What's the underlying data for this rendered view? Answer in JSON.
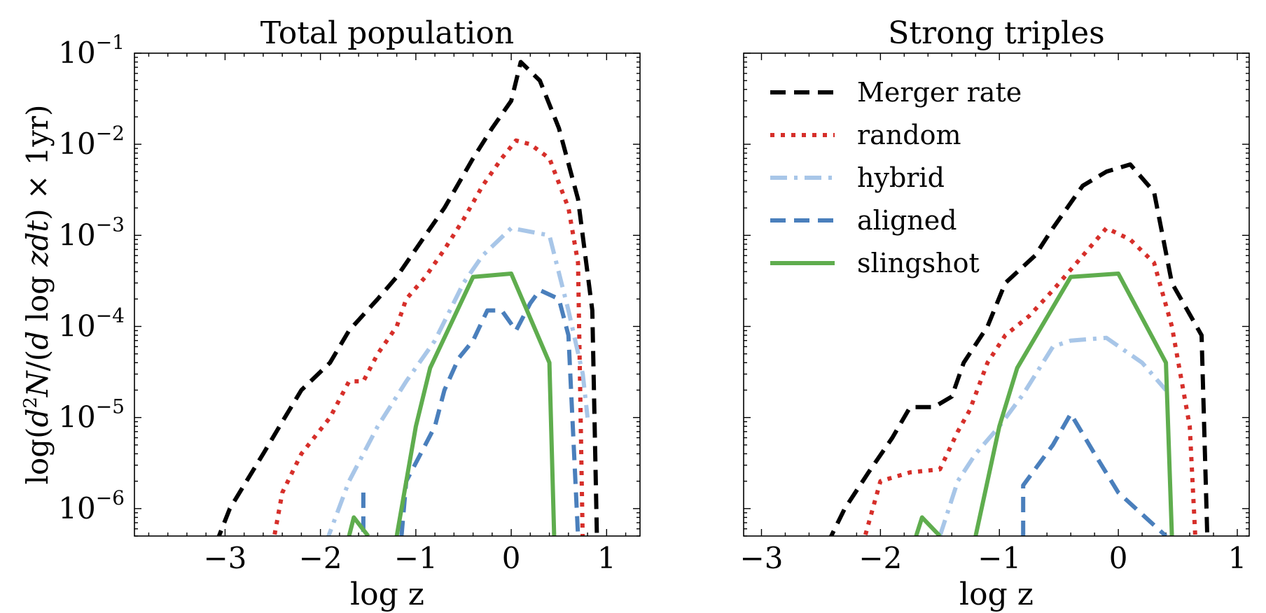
{
  "colors": {
    "merger_rate": "#000000",
    "random": "#d62f2a",
    "hybrid": "#a8c6e8",
    "aligned": "#4a7fbc",
    "slingshot": "#5fad4e"
  },
  "y_axis": {
    "label_parts": [
      "log(",
      "d",
      "2",
      "N",
      "/(",
      "d",
      " log ",
      "z",
      "d",
      "t",
      ") × 1yr)"
    ],
    "scale": "log",
    "ylim": [
      5e-07,
      0.1
    ],
    "ticks": [
      {
        "value": 1e-06,
        "base": "10",
        "exp": "−6"
      },
      {
        "value": 1e-05,
        "base": "10",
        "exp": "−5"
      },
      {
        "value": 0.0001,
        "base": "10",
        "exp": "−4"
      },
      {
        "value": 0.001,
        "base": "10",
        "exp": "−3"
      },
      {
        "value": 0.01,
        "base": "10",
        "exp": "−2"
      },
      {
        "value": 0.1,
        "base": "10",
        "exp": "−1"
      }
    ]
  },
  "chart_data": [
    {
      "type": "line",
      "title": "Total population",
      "xlabel": "log z",
      "xlim": [
        -3.95,
        1.35
      ],
      "ylim": [
        5e-07,
        0.1
      ],
      "yscale": "log",
      "grid": false,
      "legend": null,
      "x_ticks": [
        {
          "value": -3,
          "label": "−3"
        },
        {
          "value": -2,
          "label": "−2"
        },
        {
          "value": -1,
          "label": "−1"
        },
        {
          "value": 0,
          "label": "0"
        },
        {
          "value": 1,
          "label": "1"
        }
      ],
      "series": [
        {
          "key": "merger_rate",
          "style": "dashed",
          "segments": [
            [
              [
                -3.1,
                4e-07
              ],
              [
                -2.95,
                1e-06
              ],
              [
                -2.6,
                4e-06
              ],
              [
                -2.4,
                9e-06
              ],
              [
                -2.2,
                2e-05
              ],
              [
                -1.9,
                4e-05
              ],
              [
                -1.7,
                9e-05
              ],
              [
                -1.4,
                0.0002
              ],
              [
                -1.2,
                0.00035
              ],
              [
                -0.9,
                0.001
              ],
              [
                -0.7,
                0.002
              ],
              [
                -0.4,
                0.007
              ],
              [
                -0.2,
                0.015
              ],
              [
                0.0,
                0.03
              ],
              [
                0.1,
                0.08
              ],
              [
                0.3,
                0.05
              ],
              [
                0.5,
                0.015
              ],
              [
                0.7,
                0.0025
              ],
              [
                0.85,
                0.00015
              ],
              [
                0.9,
                4e-07
              ]
            ]
          ]
        },
        {
          "key": "random",
          "style": "dotted",
          "segments": [
            [
              [
                -2.5,
                4e-07
              ],
              [
                -2.4,
                1.5e-06
              ],
              [
                -2.2,
                4e-06
              ],
              [
                -1.9,
                1e-05
              ],
              [
                -1.7,
                2.5e-05
              ],
              [
                -1.55,
                2.5e-05
              ],
              [
                -1.4,
                5e-05
              ],
              [
                -1.2,
                0.0001
              ],
              [
                -1.1,
                0.0002
              ],
              [
                -0.9,
                0.00035
              ],
              [
                -0.7,
                0.0007
              ],
              [
                -0.5,
                0.0015
              ],
              [
                -0.3,
                0.0035
              ],
              [
                -0.1,
                0.007
              ],
              [
                0.05,
                0.011
              ],
              [
                0.2,
                0.01
              ],
              [
                0.4,
                0.007
              ],
              [
                0.6,
                0.002
              ],
              [
                0.7,
                0.0005
              ],
              [
                0.75,
                4e-07
              ]
            ]
          ]
        },
        {
          "key": "hybrid",
          "style": "dashdot",
          "segments": [
            [
              [
                -1.95,
                4e-07
              ],
              [
                -1.7,
                2e-06
              ],
              [
                -1.4,
                8e-06
              ],
              [
                -1.1,
                2.5e-05
              ],
              [
                -0.8,
                7e-05
              ],
              [
                -0.5,
                0.0003
              ],
              [
                -0.3,
                0.0006
              ],
              [
                0.0,
                0.0012
              ],
              [
                0.4,
                0.001
              ],
              [
                0.6,
                0.00015
              ],
              [
                0.75,
                3e-05
              ],
              [
                0.8,
                1e-05
              ]
            ]
          ]
        },
        {
          "key": "aligned",
          "style": "dashed",
          "segments": [
            [
              [
                -1.55,
                1.5e-06
              ],
              [
                -1.55,
                5e-07
              ]
            ],
            [
              [
                -1.15,
                5e-07
              ],
              [
                -1.1,
                2e-06
              ],
              [
                -0.95,
                4e-06
              ],
              [
                -0.8,
                8e-06
              ],
              [
                -0.7,
                2e-05
              ],
              [
                -0.55,
                4.5e-05
              ],
              [
                -0.4,
                7e-05
              ],
              [
                -0.25,
                0.00015
              ],
              [
                -0.1,
                0.00015
              ],
              [
                0.05,
                9e-05
              ],
              [
                0.2,
                0.00018
              ],
              [
                0.3,
                0.00025
              ],
              [
                0.5,
                0.0002
              ],
              [
                0.6,
                8e-05
              ],
              [
                0.7,
                5e-07
              ]
            ]
          ]
        },
        {
          "key": "slingshot",
          "style": "solid",
          "segments": [
            [
              [
                -1.7,
                5e-07
              ],
              [
                -1.65,
                8e-07
              ],
              [
                -1.5,
                5e-07
              ]
            ],
            [
              [
                -1.2,
                5e-07
              ],
              [
                -1.0,
                8e-06
              ],
              [
                -0.85,
                3.5e-05
              ],
              [
                -0.4,
                0.00035
              ],
              [
                0.0,
                0.00038
              ],
              [
                0.4,
                4e-05
              ],
              [
                0.45,
                5e-07
              ]
            ]
          ]
        }
      ]
    },
    {
      "type": "line",
      "title": "Strong triples",
      "xlabel": "log z",
      "xlim": [
        -3.15,
        1.1
      ],
      "ylim": [
        5e-07,
        0.1
      ],
      "yscale": "log",
      "grid": false,
      "legend": "top-left",
      "x_ticks": [
        {
          "value": -3,
          "label": "−3"
        },
        {
          "value": -2,
          "label": "−2"
        },
        {
          "value": -1,
          "label": "−1"
        },
        {
          "value": 0,
          "label": "0"
        },
        {
          "value": 1,
          "label": "1"
        }
      ],
      "series": [
        {
          "key": "merger_rate",
          "name": "Merger rate",
          "style": "dashed",
          "segments": [
            [
              [
                -2.45,
                4e-07
              ],
              [
                -2.3,
                1e-06
              ],
              [
                -2.1,
                2.5e-06
              ],
              [
                -1.9,
                6e-06
              ],
              [
                -1.75,
                1.3e-05
              ],
              [
                -1.55,
                1.3e-05
              ],
              [
                -1.4,
                1.7e-05
              ],
              [
                -1.3,
                4e-05
              ],
              [
                -1.1,
                0.0001
              ],
              [
                -0.95,
                0.0003
              ],
              [
                -0.7,
                0.0006
              ],
              [
                -0.55,
                0.0012
              ],
              [
                -0.3,
                0.0035
              ],
              [
                -0.1,
                0.005
              ],
              [
                0.1,
                0.006
              ],
              [
                0.3,
                0.003
              ],
              [
                0.45,
                0.0003
              ],
              [
                0.7,
                8e-05
              ],
              [
                0.75,
                4e-07
              ]
            ]
          ]
        },
        {
          "key": "random",
          "name": "random",
          "style": "dotted",
          "segments": [
            [
              [
                -2.15,
                4e-07
              ],
              [
                -2.0,
                2e-06
              ],
              [
                -1.75,
                2.5e-06
              ],
              [
                -1.5,
                2.7e-06
              ],
              [
                -1.35,
                7e-06
              ],
              [
                -1.25,
                1.2e-05
              ],
              [
                -1.1,
                4e-05
              ],
              [
                -0.95,
                8e-05
              ],
              [
                -0.75,
                0.00013
              ],
              [
                -0.55,
                0.00025
              ],
              [
                -0.35,
                0.0005
              ],
              [
                -0.1,
                0.0012
              ],
              [
                0.1,
                0.0009
              ],
              [
                0.3,
                0.0005
              ],
              [
                0.45,
                0.0001
              ],
              [
                0.6,
                8e-06
              ],
              [
                0.65,
                4e-07
              ]
            ]
          ]
        },
        {
          "key": "hybrid",
          "name": "hybrid",
          "style": "dashdot",
          "segments": [
            [
              [
                -1.5,
                5e-07
              ],
              [
                -1.35,
                2e-06
              ],
              [
                -1.2,
                4e-06
              ],
              [
                -1.0,
                8e-06
              ],
              [
                -0.8,
                1.8e-05
              ],
              [
                -0.55,
                6e-05
              ],
              [
                -0.4,
                7e-05
              ],
              [
                -0.1,
                7.5e-05
              ],
              [
                0.2,
                4e-05
              ],
              [
                0.4,
                2e-05
              ]
            ]
          ]
        },
        {
          "key": "aligned",
          "name": "aligned",
          "style": "dashed",
          "segments": [
            [
              [
                -0.8,
                5e-07
              ],
              [
                -0.8,
                1.8e-06
              ],
              [
                -0.55,
                5e-06
              ],
              [
                -0.4,
                1.1e-05
              ],
              [
                -0.2,
                4e-06
              ],
              [
                0.0,
                1.5e-06
              ],
              [
                0.4,
                5e-07
              ]
            ]
          ]
        },
        {
          "key": "slingshot",
          "name": "slingshot",
          "style": "solid",
          "segments": [
            [
              [
                -1.7,
                5e-07
              ],
              [
                -1.65,
                8e-07
              ],
              [
                -1.5,
                5e-07
              ]
            ],
            [
              [
                -1.2,
                5e-07
              ],
              [
                -1.0,
                8e-06
              ],
              [
                -0.85,
                3.5e-05
              ],
              [
                -0.4,
                0.00035
              ],
              [
                0.0,
                0.00038
              ],
              [
                0.4,
                4e-05
              ],
              [
                0.45,
                5e-07
              ]
            ]
          ]
        }
      ]
    }
  ]
}
